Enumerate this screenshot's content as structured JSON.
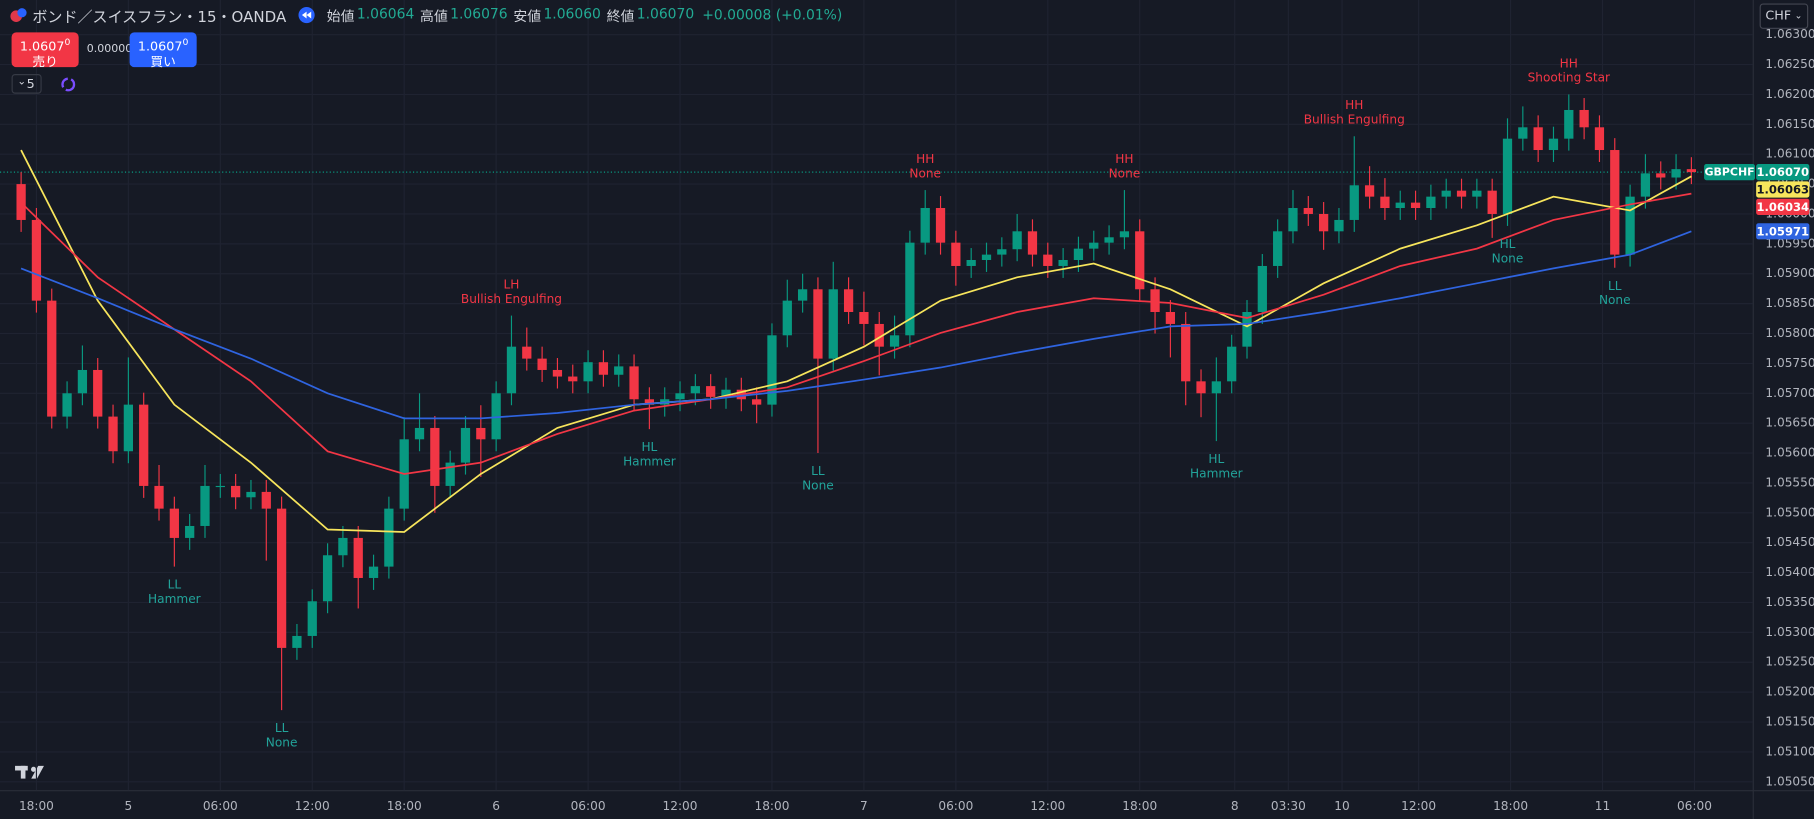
{
  "header": {
    "symbol": "ボンド／スイスフラン・15・OANDA",
    "ohlc": [
      {
        "label": "始値",
        "value": "1.06064"
      },
      {
        "label": "高値",
        "value": "1.06076"
      },
      {
        "label": "安値",
        "value": "1.06060"
      },
      {
        "label": "終値",
        "value": "1.06070"
      }
    ],
    "change": "+0.00008 (+0.01%)"
  },
  "trade": {
    "sell_price": "1.0607",
    "sell_price_sup": "0",
    "sell": "売り",
    "spread": "0.00000",
    "buy_price": "1.0607",
    "buy_price_sup": "0",
    "buy": "買い"
  },
  "indicators_count": "5",
  "currency": "CHF",
  "chart_data": {
    "type": "candlestick",
    "up_color": "#089981",
    "down_color": "#f23645",
    "grid": true,
    "xlim": [
      -1,
      113
    ],
    "ylim": [
      1.05036,
      1.06358
    ],
    "xticks": [
      {
        "value": 1,
        "label": "18:00"
      },
      {
        "value": 7,
        "label": "5"
      },
      {
        "value": 13,
        "label": "06:00"
      },
      {
        "value": 19,
        "label": "12:00"
      },
      {
        "value": 25,
        "label": "18:00"
      },
      {
        "value": 31,
        "label": "6"
      },
      {
        "value": 37,
        "label": "06:00"
      },
      {
        "value": 43,
        "label": "12:00"
      },
      {
        "value": 49,
        "label": "18:00"
      },
      {
        "value": 55,
        "label": "7"
      },
      {
        "value": 61,
        "label": "06:00"
      },
      {
        "value": 67,
        "label": "12:00"
      },
      {
        "value": 73,
        "label": "18:00"
      },
      {
        "value": 79.2,
        "label": "8"
      },
      {
        "value": 82.7,
        "label": "03:30"
      },
      {
        "value": 86.2,
        "label": "10"
      },
      {
        "value": 91.2,
        "label": "12:00"
      },
      {
        "value": 97.2,
        "label": "18:00"
      },
      {
        "value": 103.2,
        "label": "11"
      },
      {
        "value": 109.2,
        "label": "06:00"
      }
    ],
    "yticks": [
      {
        "value": 1.0505,
        "label": "1.05050"
      },
      {
        "value": 1.051,
        "label": "1.05100"
      },
      {
        "value": 1.0515,
        "label": "1.05150"
      },
      {
        "value": 1.052,
        "label": "1.05200"
      },
      {
        "value": 1.0525,
        "label": "1.05250"
      },
      {
        "value": 1.053,
        "label": "1.05300"
      },
      {
        "value": 1.0535,
        "label": "1.05350"
      },
      {
        "value": 1.054,
        "label": "1.05400"
      },
      {
        "value": 1.0545,
        "label": "1.05450"
      },
      {
        "value": 1.055,
        "label": "1.05500"
      },
      {
        "value": 1.0555,
        "label": "1.05550"
      },
      {
        "value": 1.056,
        "label": "1.05600"
      },
      {
        "value": 1.0565,
        "label": "1.05650"
      },
      {
        "value": 1.057,
        "label": "1.05700"
      },
      {
        "value": 1.0575,
        "label": "1.05750"
      },
      {
        "value": 1.058,
        "label": "1.05800"
      },
      {
        "value": 1.0585,
        "label": "1.05850"
      },
      {
        "value": 1.059,
        "label": "1.05900"
      },
      {
        "value": 1.0595,
        "label": "1.05950"
      },
      {
        "value": 1.06,
        "label": "1.06000"
      },
      {
        "value": 1.0605,
        "label": "1.06050"
      },
      {
        "value": 1.061,
        "label": "1.06100"
      },
      {
        "value": 1.0615,
        "label": "1.06150"
      },
      {
        "value": 1.062,
        "label": "1.06200"
      },
      {
        "value": 1.0625,
        "label": "1.06250"
      },
      {
        "value": 1.063,
        "label": "1.06300"
      }
    ],
    "open": [
      1.0605,
      1.0599,
      1.05855,
      1.05661,
      1.057,
      1.05739,
      1.05661,
      1.05603,
      1.05681,
      1.05545,
      1.05507,
      1.05458,
      1.05478,
      1.05545,
      1.05545,
      1.05526,
      1.05535,
      1.05507,
      1.05274,
      1.05294,
      1.05352,
      1.05429,
      1.05458,
      1.05391,
      1.0541,
      1.05507,
      1.05623,
      1.05642,
      1.05545,
      1.05584,
      1.05642,
      1.05623,
      1.057,
      1.05778,
      1.05758,
      1.05739,
      1.05728,
      1.0572,
      1.05752,
      1.05731,
      1.05745,
      1.0569,
      1.05681,
      1.0569,
      1.057,
      1.05712,
      1.05694,
      1.05706,
      1.0569,
      1.05681,
      1.05797,
      1.05855,
      1.05874,
      1.05758,
      1.05874,
      1.05836,
      1.05816,
      1.05778,
      1.05797,
      1.05952,
      1.0601,
      1.05952,
      1.05913,
      1.05923,
      1.05932,
      1.05941,
      1.05971,
      1.05932,
      1.05913,
      1.05923,
      1.05942,
      1.05952,
      1.05961,
      1.05971,
      1.05874,
      1.05836,
      1.05816,
      1.0572,
      1.057,
      1.0572,
      1.05778,
      1.05836,
      1.05913,
      1.05971,
      1.0601,
      1.06,
      1.05971,
      1.0599,
      1.06048,
      1.06029,
      1.0601,
      1.06019,
      1.0601,
      1.06029,
      1.06039,
      1.06029,
      1.06039,
      1.06,
      1.06126,
      1.06145,
      1.06107,
      1.06126,
      1.06174,
      1.06145,
      1.06107,
      1.05932,
      1.06029,
      1.06068,
      1.06061,
      1.06075
    ],
    "high": [
      1.0607,
      1.0601,
      1.05875,
      1.0572,
      1.0578,
      1.05759,
      1.05681,
      1.0576,
      1.05701,
      1.0558,
      1.05527,
      1.05498,
      1.0558,
      1.05565,
      1.05565,
      1.05555,
      1.05555,
      1.05527,
      1.05314,
      1.05372,
      1.05449,
      1.05478,
      1.05478,
      1.0543,
      1.05527,
      1.0566,
      1.057,
      1.05662,
      1.05604,
      1.05662,
      1.0568,
      1.0572,
      1.0583,
      1.0581,
      1.05778,
      1.05759,
      1.05748,
      1.05772,
      1.05772,
      1.05765,
      1.05765,
      1.0571,
      1.0571,
      1.0572,
      1.05732,
      1.05732,
      1.05726,
      1.05726,
      1.0571,
      1.05817,
      1.0589,
      1.059,
      1.05894,
      1.0592,
      1.05894,
      1.0587,
      1.05836,
      1.0583,
      1.05972,
      1.0604,
      1.0603,
      1.05972,
      1.05943,
      1.05952,
      1.05961,
      1.06,
      1.05991,
      1.05952,
      1.05943,
      1.05962,
      1.05972,
      1.05981,
      1.0604,
      1.05991,
      1.05894,
      1.05856,
      1.05836,
      1.0574,
      1.0576,
      1.05798,
      1.05856,
      1.05933,
      1.05991,
      1.0604,
      1.0603,
      1.0602,
      1.0601,
      1.0613,
      1.0608,
      1.0606,
      1.06039,
      1.06039,
      1.06049,
      1.06059,
      1.06059,
      1.06059,
      1.06059,
      1.0616,
      1.0618,
      1.06165,
      1.06146,
      1.062,
      1.06194,
      1.06165,
      1.06127,
      1.06049,
      1.061,
      1.06088,
      1.061,
      1.06095
    ],
    "low": [
      1.0597,
      1.05835,
      1.05641,
      1.05641,
      1.0568,
      1.05641,
      1.05583,
      1.05583,
      1.05525,
      1.05487,
      1.0541,
      1.05438,
      1.05458,
      1.05525,
      1.05506,
      1.05506,
      1.0542,
      1.0517,
      1.05254,
      1.05274,
      1.05332,
      1.05409,
      1.0534,
      1.05371,
      1.0539,
      1.05487,
      1.05603,
      1.055,
      1.05525,
      1.05564,
      1.0556,
      1.05603,
      1.0568,
      1.05738,
      1.05719,
      1.05708,
      1.057,
      1.057,
      1.05711,
      1.05711,
      1.0567,
      1.0564,
      1.05661,
      1.0567,
      1.0568,
      1.05674,
      1.05674,
      1.0567,
      1.0565,
      1.05661,
      1.05777,
      1.05835,
      1.056,
      1.05738,
      1.05816,
      1.0578,
      1.0573,
      1.05758,
      1.05777,
      1.05932,
      1.05932,
      1.0588,
      1.05893,
      1.05903,
      1.05912,
      1.05921,
      1.05912,
      1.05893,
      1.05893,
      1.05903,
      1.05922,
      1.05932,
      1.05941,
      1.05854,
      1.058,
      1.0576,
      1.0568,
      1.0566,
      1.0562,
      1.057,
      1.05758,
      1.05816,
      1.05893,
      1.05951,
      1.0598,
      1.0594,
      1.05951,
      1.0597,
      1.06009,
      1.0599,
      1.0599,
      1.0599,
      1.0599,
      1.06009,
      1.06009,
      1.06009,
      1.0596,
      1.0598,
      1.06106,
      1.06087,
      1.06087,
      1.06106,
      1.06125,
      1.06087,
      1.0591,
      1.05912,
      1.06009,
      1.06041,
      1.06041,
      1.0605
    ],
    "close": [
      1.0599,
      1.05855,
      1.05661,
      1.057,
      1.05739,
      1.05661,
      1.05603,
      1.05681,
      1.05545,
      1.05507,
      1.05458,
      1.05478,
      1.05545,
      1.05545,
      1.05526,
      1.05535,
      1.05507,
      1.05274,
      1.05294,
      1.05352,
      1.05429,
      1.05458,
      1.05391,
      1.0541,
      1.05507,
      1.05623,
      1.05642,
      1.05545,
      1.05584,
      1.05642,
      1.05623,
      1.057,
      1.05778,
      1.05758,
      1.05739,
      1.05728,
      1.0572,
      1.05752,
      1.05731,
      1.05745,
      1.0569,
      1.05681,
      1.0569,
      1.057,
      1.05712,
      1.05694,
      1.05706,
      1.0569,
      1.05681,
      1.05797,
      1.05855,
      1.05874,
      1.05758,
      1.05874,
      1.05836,
      1.05816,
      1.05778,
      1.05797,
      1.05952,
      1.0601,
      1.05952,
      1.05913,
      1.05923,
      1.05932,
      1.05941,
      1.05971,
      1.05932,
      1.05913,
      1.05923,
      1.05942,
      1.05952,
      1.05961,
      1.05971,
      1.05874,
      1.05836,
      1.05816,
      1.0572,
      1.057,
      1.0572,
      1.05778,
      1.05836,
      1.05913,
      1.05971,
      1.0601,
      1.06,
      1.05971,
      1.0599,
      1.06048,
      1.06029,
      1.0601,
      1.06019,
      1.0601,
      1.06029,
      1.06039,
      1.06029,
      1.06039,
      1.06,
      1.06126,
      1.06145,
      1.06107,
      1.06126,
      1.06174,
      1.06145,
      1.06107,
      1.05932,
      1.06029,
      1.06068,
      1.06061,
      1.06075,
      1.0607
    ],
    "series": [
      {
        "color": "#f7e55c",
        "x": [
          0,
          5,
          10,
          15,
          20,
          25,
          30,
          35,
          40,
          45,
          50,
          55,
          60,
          65,
          70,
          75,
          80,
          85,
          90,
          95,
          100,
          105,
          109
        ],
        "values": [
          1.06107,
          1.05855,
          1.05681,
          1.05584,
          1.05472,
          1.05468,
          1.05565,
          1.05642,
          1.05681,
          1.0569,
          1.0572,
          1.05778,
          1.05855,
          1.05894,
          1.05917,
          1.05874,
          1.05812,
          1.05884,
          1.05942,
          1.05981,
          1.06029,
          1.06006,
          1.06063
        ]
      },
      {
        "color": "#f23645",
        "x": [
          0,
          5,
          10,
          15,
          20,
          25,
          30,
          35,
          40,
          45,
          50,
          55,
          60,
          65,
          70,
          75,
          80,
          85,
          90,
          95,
          100,
          105,
          109
        ],
        "values": [
          1.06019,
          1.05894,
          1.05807,
          1.0572,
          1.05603,
          1.05565,
          1.05584,
          1.05632,
          1.05671,
          1.0569,
          1.0571,
          1.05754,
          1.05801,
          1.05836,
          1.05859,
          1.05851,
          1.05826,
          1.05865,
          1.05913,
          1.05942,
          1.0599,
          1.06016,
          1.06034
        ]
      },
      {
        "color": "#2f64e0",
        "x": [
          0,
          5,
          10,
          15,
          20,
          25,
          30,
          35,
          40,
          45,
          50,
          55,
          60,
          65,
          70,
          75,
          80,
          85,
          90,
          95,
          100,
          105,
          109
        ],
        "values": [
          1.05909,
          1.05859,
          1.05807,
          1.05758,
          1.057,
          1.05658,
          1.05658,
          1.05667,
          1.05681,
          1.0569,
          1.05704,
          1.05723,
          1.05743,
          1.05768,
          1.05791,
          1.05812,
          1.05816,
          1.05836,
          1.05859,
          1.05884,
          1.05909,
          1.05932,
          1.05971
        ]
      }
    ],
    "annotations": [
      {
        "index": 10,
        "position": "below",
        "color": "#22a39a",
        "text": [
          "LL",
          "Hammer"
        ]
      },
      {
        "index": 17,
        "position": "below",
        "color": "#22a39a",
        "text": [
          "LL",
          "None"
        ]
      },
      {
        "index": 32,
        "position": "above",
        "color": "#f23645",
        "text": [
          "LH",
          "Bullish Engulfing"
        ]
      },
      {
        "index": 41,
        "position": "below",
        "color": "#22a39a",
        "text": [
          "HL",
          "Hammer"
        ]
      },
      {
        "index": 52,
        "position": "below",
        "color": "#22a39a",
        "text": [
          "LL",
          "None"
        ]
      },
      {
        "index": 59,
        "position": "above",
        "color": "#f23645",
        "text": [
          "HH",
          "None"
        ]
      },
      {
        "index": 72,
        "position": "above",
        "color": "#f23645",
        "text": [
          "HH",
          "None"
        ]
      },
      {
        "index": 78,
        "position": "below",
        "color": "#22a39a",
        "text": [
          "HL",
          "Hammer"
        ]
      },
      {
        "index": 87,
        "position": "above",
        "color": "#f23645",
        "text": [
          "HH",
          "Bullish Engulfing"
        ]
      },
      {
        "index": 97,
        "position": "below",
        "color": "#22a39a",
        "text": [
          "HL",
          "None"
        ]
      },
      {
        "index": 101,
        "position": "above",
        "color": "#f23645",
        "text": [
          "HH",
          "Shooting Star"
        ]
      },
      {
        "index": 104,
        "position": "below",
        "color": "#22a39a",
        "text": [
          "LL",
          "None"
        ]
      }
    ],
    "price_tags": [
      {
        "name": "GBPCHF",
        "value": 1.0607,
        "label": "1.06070",
        "color": "#089981",
        "text_color": "#ffffff"
      },
      {
        "value": 1.06063,
        "label": "1.06063",
        "color": "#f7e55c",
        "text_color": "#131722"
      },
      {
        "value": 1.06034,
        "label": "1.06034",
        "color": "#f23645",
        "text_color": "#ffffff"
      },
      {
        "value": 1.05971,
        "label": "1.05971",
        "color": "#2f64e0",
        "text_color": "#ffffff"
      }
    ]
  }
}
